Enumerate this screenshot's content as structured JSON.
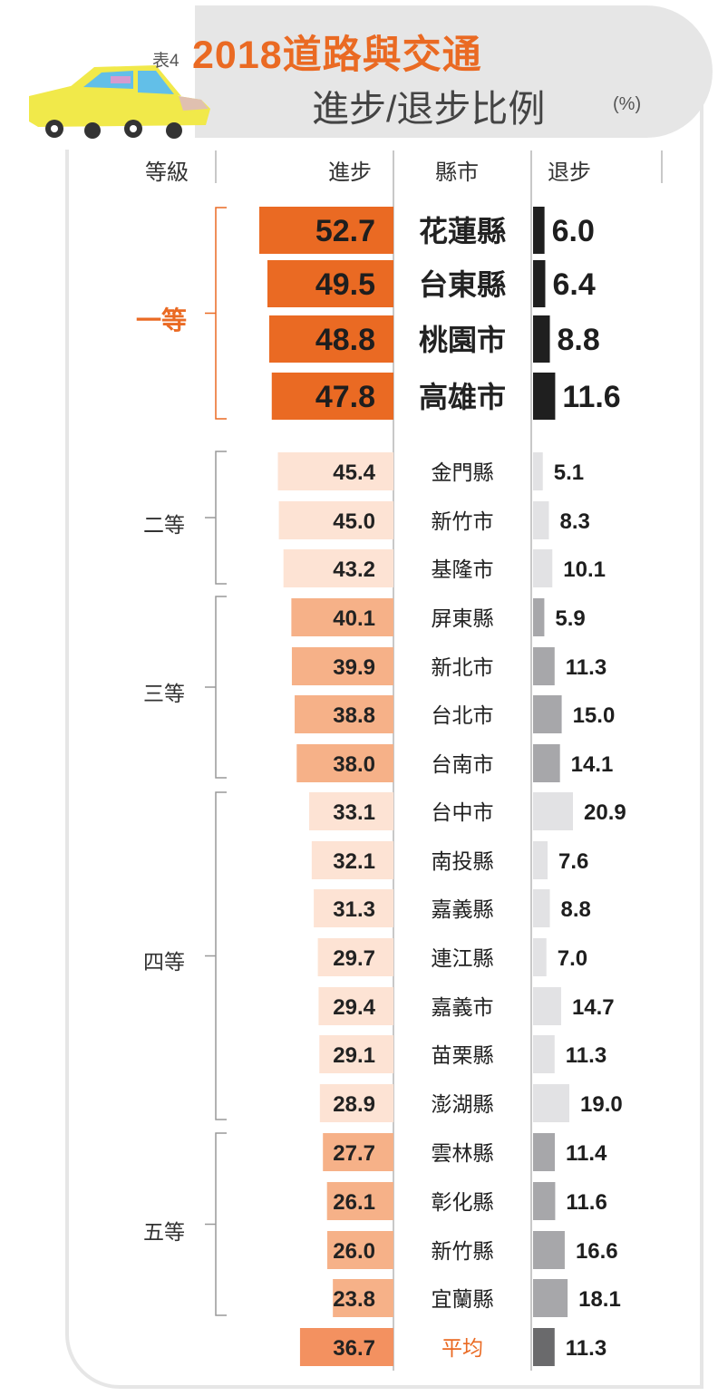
{
  "header": {
    "table_no": "表4",
    "title": "2018道路與交通",
    "subtitle": "進步/退步比例",
    "unit": "(%)"
  },
  "columns": {
    "grade": "等級",
    "progress": "進步",
    "county": "縣市",
    "regress": "退步"
  },
  "groups": [
    {
      "label": "一等"
    },
    {
      "label": "二等"
    },
    {
      "label": "三等"
    },
    {
      "label": "四等"
    },
    {
      "label": "五等"
    }
  ],
  "colors": {
    "group1_progress": "#ea6a23",
    "group1_regress": "#1f1f1f",
    "group2_progress": "#fde3d4",
    "group2_regress": "#e2e2e4",
    "group3_progress": "#f6b188",
    "group3_regress": "#a7a7aa",
    "group4_progress": "#fde3d4",
    "group4_regress": "#e2e2e4",
    "group5_progress": "#f6b188",
    "group5_regress": "#a7a7aa",
    "average_progress": "#f39160",
    "average_regress": "#6a6a6c",
    "accent": "#ea6a23"
  },
  "chart_data": {
    "type": "bar",
    "series": [
      {
        "name": "進步",
        "values": [
          52.7,
          49.5,
          48.8,
          47.8,
          45.4,
          45.0,
          43.2,
          40.1,
          39.9,
          38.8,
          38.0,
          33.1,
          32.1,
          31.3,
          29.7,
          29.4,
          29.1,
          28.9,
          27.7,
          26.1,
          26.0,
          23.8,
          36.7
        ]
      },
      {
        "name": "退步",
        "values": [
          6.0,
          6.4,
          8.8,
          11.6,
          5.1,
          8.3,
          10.1,
          5.9,
          11.3,
          15.0,
          14.1,
          20.9,
          7.6,
          8.8,
          7.0,
          14.7,
          11.3,
          19.0,
          11.4,
          11.6,
          16.6,
          18.1,
          11.3
        ]
      }
    ],
    "categories": [
      "花蓮縣",
      "台東縣",
      "桃園市",
      "高雄市",
      "金門縣",
      "新竹市",
      "基隆市",
      "屏東縣",
      "新北市",
      "台北市",
      "台南市",
      "台中市",
      "南投縣",
      "嘉義縣",
      "連江縣",
      "嘉義市",
      "苗栗縣",
      "澎湖縣",
      "雲林縣",
      "彰化縣",
      "新竹縣",
      "宜蘭縣",
      "平均"
    ],
    "grade_of_row": [
      "一等",
      "一等",
      "一等",
      "一等",
      "二等",
      "二等",
      "二等",
      "三等",
      "三等",
      "三等",
      "三等",
      "四等",
      "四等",
      "四等",
      "四等",
      "四等",
      "四等",
      "四等",
      "五等",
      "五等",
      "五等",
      "五等",
      ""
    ]
  }
}
